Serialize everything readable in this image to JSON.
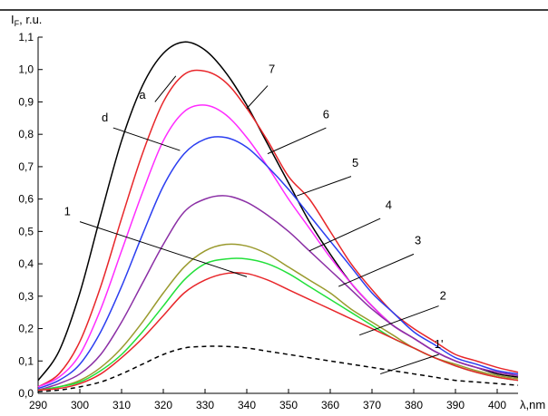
{
  "chart_data": {
    "type": "line",
    "y_title": "IF, r.u.",
    "x_title": "λ,nm",
    "xlim": [
      290,
      405
    ],
    "ylim": [
      0.0,
      1.1
    ],
    "x_ticks": [
      290,
      300,
      310,
      320,
      330,
      340,
      350,
      360,
      370,
      380,
      390,
      400
    ],
    "y_ticks": [
      "0,0",
      "0,1",
      "0,2",
      "0,3",
      "0,4",
      "0,5",
      "0,6",
      "0,7",
      "0,8",
      "0,9",
      "1,0",
      "1,1"
    ],
    "grid": false,
    "series": [
      {
        "name": "a",
        "color": "#000000",
        "dash": false,
        "x": [
          290,
          295,
          300,
          305,
          310,
          315,
          320,
          325,
          330,
          335,
          340,
          345,
          350,
          355,
          360,
          365,
          370,
          375,
          380,
          385,
          390,
          395,
          400,
          405
        ],
        "y": [
          0.04,
          0.13,
          0.31,
          0.55,
          0.78,
          0.95,
          1.05,
          1.085,
          1.06,
          0.99,
          0.89,
          0.77,
          0.65,
          0.53,
          0.43,
          0.34,
          0.27,
          0.21,
          0.17,
          0.13,
          0.1,
          0.08,
          0.06,
          0.05
        ]
      },
      {
        "name": "7",
        "color": "#e8262a",
        "dash": false,
        "x": [
          290,
          295,
          300,
          305,
          310,
          315,
          320,
          325,
          330,
          335,
          340,
          345,
          350,
          355,
          360,
          365,
          370,
          375,
          380,
          385,
          390,
          395,
          400,
          405
        ],
        "y": [
          0.02,
          0.06,
          0.16,
          0.33,
          0.54,
          0.74,
          0.9,
          0.985,
          0.995,
          0.96,
          0.88,
          0.78,
          0.67,
          0.6,
          0.5,
          0.4,
          0.32,
          0.25,
          0.2,
          0.16,
          0.12,
          0.1,
          0.08,
          0.065
        ]
      },
      {
        "name": "6",
        "color": "#ff2bff",
        "dash": false,
        "x": [
          290,
          295,
          300,
          305,
          310,
          315,
          320,
          325,
          330,
          335,
          340,
          345,
          350,
          355,
          360,
          365,
          370,
          375,
          380,
          385,
          390,
          395,
          400,
          405
        ],
        "y": [
          0.02,
          0.05,
          0.12,
          0.26,
          0.44,
          0.62,
          0.78,
          0.87,
          0.89,
          0.86,
          0.79,
          0.7,
          0.6,
          0.51,
          0.42,
          0.34,
          0.27,
          0.21,
          0.17,
          0.13,
          0.1,
          0.08,
          0.065,
          0.055
        ]
      },
      {
        "name": "5",
        "color": "#2b3ef0",
        "dash": false,
        "x": [
          290,
          295,
          300,
          305,
          310,
          315,
          320,
          325,
          330,
          335,
          340,
          345,
          350,
          355,
          360,
          365,
          370,
          375,
          380,
          385,
          390,
          395,
          400,
          405
        ],
        "y": [
          0.015,
          0.04,
          0.09,
          0.19,
          0.33,
          0.49,
          0.64,
          0.74,
          0.785,
          0.79,
          0.76,
          0.7,
          0.63,
          0.55,
          0.47,
          0.39,
          0.31,
          0.25,
          0.19,
          0.15,
          0.11,
          0.09,
          0.07,
          0.06
        ]
      },
      {
        "name": "4",
        "color": "#8b2fa5",
        "dash": false,
        "x": [
          290,
          295,
          300,
          305,
          310,
          315,
          320,
          325,
          330,
          335,
          340,
          345,
          350,
          355,
          360,
          365,
          370,
          375,
          380,
          385,
          390,
          395,
          400,
          405
        ],
        "y": [
          0.01,
          0.03,
          0.06,
          0.12,
          0.22,
          0.34,
          0.46,
          0.56,
          0.6,
          0.61,
          0.59,
          0.55,
          0.5,
          0.44,
          0.38,
          0.32,
          0.26,
          0.21,
          0.17,
          0.13,
          0.1,
          0.08,
          0.065,
          0.055
        ]
      },
      {
        "name": "3",
        "color": "#9a9a2e",
        "dash": false,
        "x": [
          290,
          295,
          300,
          305,
          310,
          315,
          320,
          325,
          330,
          335,
          340,
          345,
          350,
          355,
          360,
          365,
          370,
          375,
          380,
          385,
          390,
          395,
          400,
          405
        ],
        "y": [
          0.01,
          0.02,
          0.04,
          0.08,
          0.14,
          0.22,
          0.31,
          0.39,
          0.44,
          0.46,
          0.455,
          0.43,
          0.39,
          0.35,
          0.31,
          0.26,
          0.22,
          0.18,
          0.14,
          0.11,
          0.09,
          0.07,
          0.055,
          0.045
        ]
      },
      {
        "name": "2",
        "color": "#22e03a",
        "dash": false,
        "x": [
          290,
          295,
          300,
          305,
          310,
          315,
          320,
          325,
          330,
          335,
          340,
          345,
          350,
          355,
          360,
          365,
          370,
          375,
          380,
          385,
          390,
          395,
          400,
          405
        ],
        "y": [
          0.01,
          0.02,
          0.035,
          0.07,
          0.12,
          0.19,
          0.27,
          0.35,
          0.4,
          0.415,
          0.415,
          0.4,
          0.37,
          0.33,
          0.29,
          0.25,
          0.21,
          0.17,
          0.14,
          0.11,
          0.085,
          0.065,
          0.05,
          0.04
        ]
      },
      {
        "name": "1",
        "color": "#e8262a",
        "dash": false,
        "x": [
          290,
          295,
          300,
          305,
          310,
          315,
          320,
          325,
          330,
          335,
          340,
          345,
          350,
          355,
          360,
          365,
          370,
          375,
          380,
          385,
          390,
          395,
          400,
          405
        ],
        "y": [
          0.01,
          0.015,
          0.03,
          0.06,
          0.11,
          0.17,
          0.24,
          0.31,
          0.35,
          0.37,
          0.37,
          0.35,
          0.32,
          0.29,
          0.26,
          0.23,
          0.2,
          0.17,
          0.14,
          0.11,
          0.085,
          0.065,
          0.05,
          0.04
        ]
      },
      {
        "name": "1'",
        "color": "#000000",
        "dash": true,
        "x": [
          290,
          295,
          300,
          305,
          310,
          315,
          320,
          325,
          330,
          335,
          340,
          345,
          350,
          355,
          360,
          365,
          370,
          375,
          380,
          385,
          390,
          395,
          400,
          405
        ],
        "y": [
          0.005,
          0.01,
          0.02,
          0.035,
          0.06,
          0.09,
          0.12,
          0.14,
          0.145,
          0.145,
          0.14,
          0.13,
          0.12,
          0.11,
          0.1,
          0.09,
          0.08,
          0.07,
          0.06,
          0.05,
          0.04,
          0.035,
          0.03,
          0.025
        ]
      }
    ],
    "annotations": [
      {
        "text": "a",
        "x": 315,
        "y": 0.91,
        "lx1": 318,
        "ly1": 0.9,
        "lx2": 323,
        "ly2": 0.98
      },
      {
        "text": "d",
        "x": 306,
        "y": 0.84,
        "lx1": 308,
        "ly1": 0.82,
        "lx2": 324,
        "ly2": 0.75
      },
      {
        "text": "7",
        "x": 346,
        "y": 0.99,
        "lx1": 345,
        "ly1": 0.95,
        "lx2": 340,
        "ly2": 0.88
      },
      {
        "text": "6",
        "x": 359,
        "y": 0.85,
        "lx1": 359,
        "ly1": 0.82,
        "lx2": 345,
        "ly2": 0.74
      },
      {
        "text": "5",
        "x": 366,
        "y": 0.7,
        "lx1": 365,
        "ly1": 0.67,
        "lx2": 352,
        "ly2": 0.61
      },
      {
        "text": "4",
        "x": 374,
        "y": 0.57,
        "lx1": 372,
        "ly1": 0.54,
        "lx2": 355,
        "ly2": 0.44
      },
      {
        "text": "3",
        "x": 381,
        "y": 0.46,
        "lx1": 380,
        "ly1": 0.43,
        "lx2": 362,
        "ly2": 0.33
      },
      {
        "text": "2",
        "x": 387,
        "y": 0.29,
        "lx1": 386,
        "ly1": 0.27,
        "lx2": 367,
        "ly2": 0.18
      },
      {
        "text": "1",
        "x": 297,
        "y": 0.55,
        "lx1": 300,
        "ly1": 0.53,
        "lx2": 340,
        "ly2": 0.36
      },
      {
        "text": "1'",
        "x": 386,
        "y": 0.14,
        "lx1": 386,
        "ly1": 0.12,
        "lx2": 372,
        "ly2": 0.06
      }
    ]
  }
}
